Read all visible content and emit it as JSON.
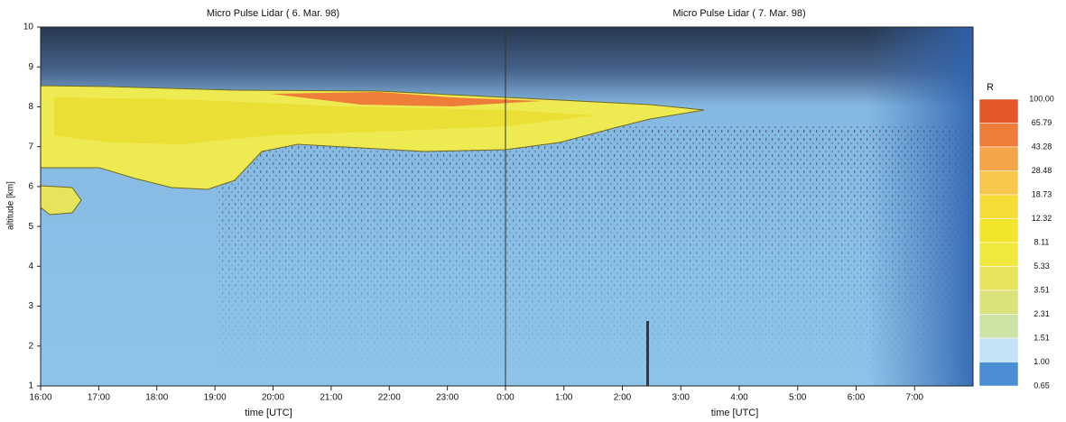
{
  "chart_data": [
    {
      "type": "lidar",
      "title": "Micro Pulse Lidar ( 6. Mar. 98)",
      "xlabel": "time [UTC]",
      "ylabel": "altitude [km]",
      "xlim": [
        16,
        24
      ],
      "xticks": [
        {
          "value": 16,
          "label": "16:00"
        },
        {
          "value": 17,
          "label": "17:00"
        },
        {
          "value": 18,
          "label": "18:00"
        },
        {
          "value": 19,
          "label": "19:00"
        },
        {
          "value": 20,
          "label": "20:00"
        },
        {
          "value": 21,
          "label": "21:00"
        },
        {
          "value": 22,
          "label": "22:00"
        },
        {
          "value": 23,
          "label": "23:00"
        }
      ],
      "ylim": [
        1,
        10
      ],
      "yticks": [
        1,
        2,
        3,
        4,
        5,
        6,
        7,
        8,
        9,
        10
      ]
    },
    {
      "type": "lidar",
      "title": "Micro Pulse Lidar ( 7. Mar. 98)",
      "xlabel": "time [UTC]",
      "xlim": [
        0,
        8
      ],
      "xticks": [
        {
          "value": 0,
          "label": "0:00"
        },
        {
          "value": 1,
          "label": "1:00"
        },
        {
          "value": 2,
          "label": "2:00"
        },
        {
          "value": 3,
          "label": "3:00"
        },
        {
          "value": 4,
          "label": "4:00"
        },
        {
          "value": 5,
          "label": "5:00"
        },
        {
          "value": 6,
          "label": "6:00"
        },
        {
          "value": 7,
          "label": "7:00"
        }
      ],
      "ylim": [
        1,
        10
      ]
    },
    {
      "type": "colorbar",
      "title": "R",
      "levels": [
        {
          "value": 100,
          "label": "100.00"
        },
        {
          "value": 65.79,
          "label": "65.79"
        },
        {
          "value": 43.28,
          "label": "43.28"
        },
        {
          "value": 28.48,
          "label": "28.48"
        },
        {
          "value": 18.73,
          "label": "18.73"
        },
        {
          "value": 12.32,
          "label": "12.32"
        },
        {
          "value": 8.11,
          "label": "8.11"
        },
        {
          "value": 5.33,
          "label": "5.33"
        },
        {
          "value": 3.51,
          "label": "3.51"
        },
        {
          "value": 2.31,
          "label": "2.31"
        },
        {
          "value": 1.51,
          "label": "1.51"
        },
        {
          "value": 1,
          "label": "1.00"
        },
        {
          "value": 0.65,
          "label": "0.65"
        }
      ],
      "colors": [
        "#e5572a",
        "#ee7d3a",
        "#f4a548",
        "#f7c84c",
        "#f6dc36",
        "#f3e52c",
        "#f1e83e",
        "#e6e45c",
        "#dbe27c",
        "#cce3a6",
        "#c4e2f5",
        "#4b8ed5"
      ]
    }
  ]
}
